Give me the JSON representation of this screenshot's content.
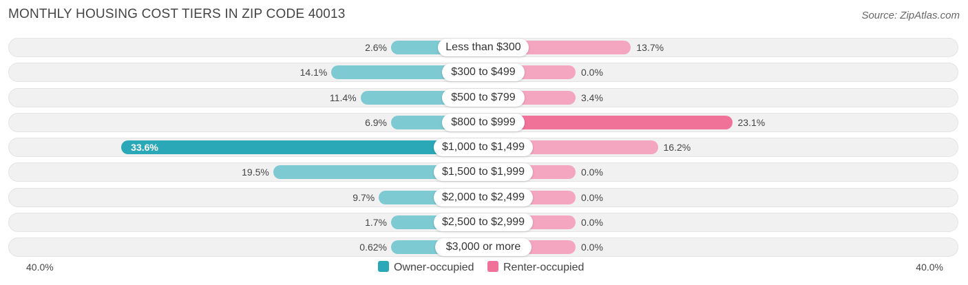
{
  "header": {
    "title": "MONTHLY HOUSING COST TIERS IN ZIP CODE 40013",
    "source": "Source: ZipAtlas.com"
  },
  "colors": {
    "owner": "#7ecad3",
    "owner_strong": "#2aa8b8",
    "renter": "#f4a6c0",
    "renter_strong": "#f07298"
  },
  "chart_data": {
    "type": "bar",
    "orientation": "horizontal-diverging",
    "title": "MONTHLY HOUSING COST TIERS IN ZIP CODE 40013",
    "categories": [
      "Less than $300",
      "$300 to $499",
      "$500 to $799",
      "$800 to $999",
      "$1,000 to $1,499",
      "$1,500 to $1,999",
      "$2,000 to $2,499",
      "$2,500 to $2,999",
      "$3,000 or more"
    ],
    "series": [
      {
        "name": "Owner-occupied",
        "values": [
          2.6,
          14.1,
          11.4,
          6.9,
          33.6,
          19.5,
          9.7,
          1.7,
          0.62
        ],
        "labels": [
          "2.6%",
          "14.1%",
          "11.4%",
          "6.9%",
          "33.6%",
          "19.5%",
          "9.7%",
          "1.7%",
          "0.62%"
        ]
      },
      {
        "name": "Renter-occupied",
        "values": [
          13.7,
          0.0,
          3.4,
          23.1,
          16.2,
          0.0,
          0.0,
          0.0,
          0.0
        ],
        "labels": [
          "13.7%",
          "0.0%",
          "3.4%",
          "23.1%",
          "16.2%",
          "0.0%",
          "0.0%",
          "0.0%",
          "0.0%"
        ]
      }
    ],
    "axis": {
      "min_label": "40.0%",
      "max_label": "40.0%",
      "range": [
        -40,
        40
      ]
    },
    "legend": [
      "Owner-occupied",
      "Renter-occupied"
    ]
  }
}
